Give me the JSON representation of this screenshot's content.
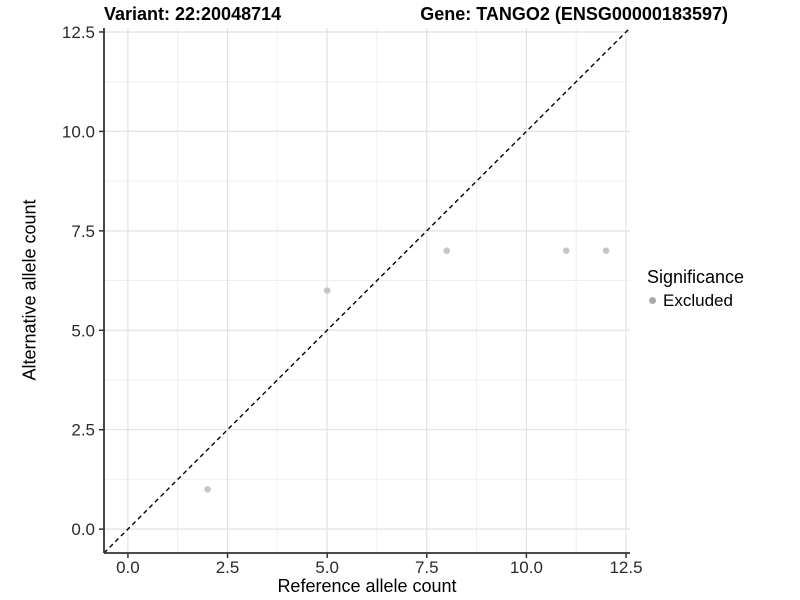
{
  "chart_data": {
    "type": "scatter",
    "title_left": "Variant: 22:20048714",
    "title_right": "Gene: TANGO2 (ENSG00000183597)",
    "xlabel": "Reference allele count",
    "ylabel": "Alternative allele count",
    "xlim": [
      -0.6,
      12.6
    ],
    "ylim": [
      -0.6,
      12.6
    ],
    "x_ticks": {
      "values": [
        0,
        2.5,
        5,
        7.5,
        10,
        12.5
      ],
      "labels": [
        "0.0",
        "2.5",
        "5.0",
        "7.5",
        "10.0",
        "12.5"
      ]
    },
    "y_ticks": {
      "values": [
        0,
        2.5,
        5,
        7.5,
        10,
        12.5
      ],
      "labels": [
        "0.0",
        "2.5",
        "5.0",
        "7.5",
        "10.0",
        "12.5"
      ]
    },
    "minor_ticks": [
      1.25,
      3.75,
      6.25,
      8.75,
      11.25
    ],
    "grid": true,
    "identity_line": {
      "style": "dashed",
      "color": "#000000"
    },
    "series": [
      {
        "name": "Excluded",
        "color": "#c6c6c6",
        "points": [
          {
            "x": 2,
            "y": 1
          },
          {
            "x": 5,
            "y": 6
          },
          {
            "x": 8,
            "y": 7
          },
          {
            "x": 11,
            "y": 7
          },
          {
            "x": 12,
            "y": 7
          }
        ]
      }
    ],
    "legend": {
      "title": "Significance",
      "position": "right",
      "key_color": "#a9a9a9"
    },
    "colors": {
      "grid_major": "#e2e2e2",
      "grid_minor": "#efefef",
      "axis_line": "#333333",
      "tick_text": "#2b2b2b"
    }
  }
}
